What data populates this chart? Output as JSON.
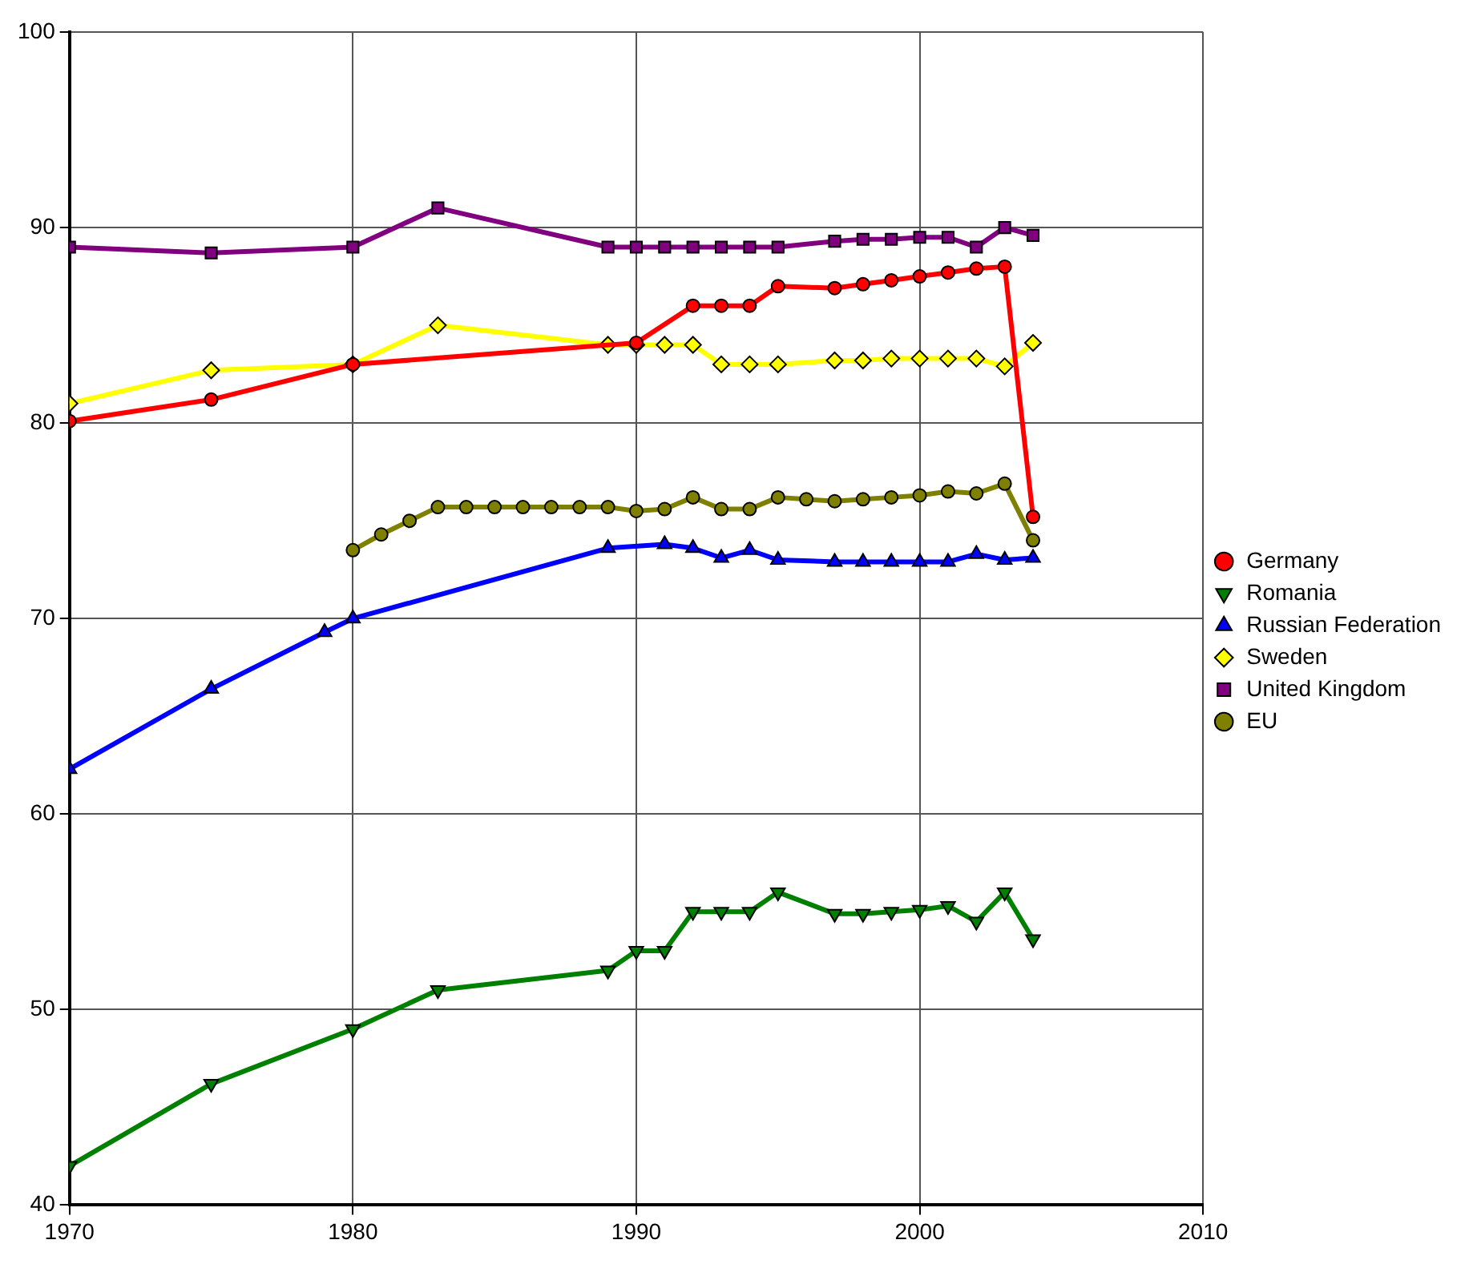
{
  "chart_data": {
    "type": "line",
    "xlim": [
      1970,
      2010
    ],
    "xticks": [
      1970,
      1980,
      1990,
      2000,
      2010
    ],
    "ylim": [
      40,
      100
    ],
    "yticks": [
      40,
      50,
      60,
      70,
      80,
      90,
      100
    ],
    "grid": true,
    "legend": "right",
    "series": [
      {
        "name": "Germany",
        "color": "#ff0000",
        "marker": "circle",
        "x": [
          1970,
          1975,
          1980,
          1990,
          1992,
          1993,
          1994,
          1995,
          1997,
          1998,
          1999,
          2000,
          2001,
          2002,
          2003,
          2004
        ],
        "values": [
          80.1,
          81.2,
          83.0,
          84.1,
          86.0,
          86.0,
          86.0,
          87.0,
          86.9,
          87.1,
          87.3,
          87.5,
          87.7,
          87.9,
          88.0,
          75.2
        ]
      },
      {
        "name": "Romania",
        "color": "#008000",
        "marker": "triangle-down",
        "x": [
          1970,
          1975,
          1980,
          1983,
          1989,
          1990,
          1991,
          1992,
          1993,
          1994,
          1995,
          1997,
          1998,
          1999,
          2000,
          2001,
          2002,
          2003,
          2004
        ],
        "values": [
          42.0,
          46.2,
          49.0,
          51.0,
          52.0,
          53.0,
          53.0,
          55.0,
          55.0,
          55.0,
          56.0,
          54.9,
          54.9,
          55.0,
          55.1,
          55.3,
          54.5,
          56.0,
          53.6
        ]
      },
      {
        "name": "Russian Federation",
        "color": "#0000ff",
        "marker": "triangle",
        "x": [
          1970,
          1975,
          1979,
          1980,
          1989,
          1991,
          1992,
          1993,
          1994,
          1995,
          1997,
          1998,
          1999,
          2000,
          2001,
          2002,
          2003,
          2004
        ],
        "values": [
          62.3,
          66.4,
          69.3,
          70.0,
          73.6,
          73.8,
          73.6,
          73.1,
          73.5,
          73.0,
          72.9,
          72.9,
          72.9,
          72.9,
          72.9,
          73.3,
          73.0,
          73.1
        ]
      },
      {
        "name": "Sweden",
        "color": "#ffff00",
        "marker": "diamond",
        "x": [
          1970,
          1975,
          1980,
          1983,
          1989,
          1990,
          1991,
          1992,
          1993,
          1994,
          1995,
          1997,
          1998,
          1999,
          2000,
          2001,
          2002,
          2003,
          2004
        ],
        "values": [
          81.0,
          82.7,
          83.0,
          85.0,
          84.0,
          84.0,
          84.0,
          84.0,
          83.0,
          83.0,
          83.0,
          83.2,
          83.2,
          83.3,
          83.3,
          83.3,
          83.3,
          82.9,
          84.1
        ]
      },
      {
        "name": "United Kingdom",
        "color": "#800080",
        "marker": "square",
        "x": [
          1970,
          1975,
          1980,
          1983,
          1989,
          1990,
          1991,
          1992,
          1993,
          1994,
          1995,
          1997,
          1998,
          1999,
          2000,
          2001,
          2002,
          2003,
          2004
        ],
        "values": [
          89.0,
          88.7,
          89.0,
          91.0,
          89.0,
          89.0,
          89.0,
          89.0,
          89.0,
          89.0,
          89.0,
          89.3,
          89.4,
          89.4,
          89.5,
          89.5,
          89.0,
          90.0,
          89.6
        ]
      },
      {
        "name": "EU",
        "color": "#808000",
        "marker": "circle",
        "x": [
          1980,
          1981,
          1982,
          1983,
          1984,
          1985,
          1986,
          1987,
          1988,
          1989,
          1990,
          1991,
          1992,
          1993,
          1994,
          1995,
          1996,
          1997,
          1998,
          1999,
          2000,
          2001,
          2002,
          2003,
          2004
        ],
        "values": [
          73.5,
          74.3,
          75.0,
          75.7,
          75.7,
          75.7,
          75.7,
          75.7,
          75.7,
          75.7,
          75.5,
          75.6,
          76.2,
          75.6,
          75.6,
          76.2,
          76.1,
          76.0,
          76.1,
          76.2,
          76.3,
          76.5,
          76.4,
          76.9,
          74.0
        ]
      }
    ]
  }
}
